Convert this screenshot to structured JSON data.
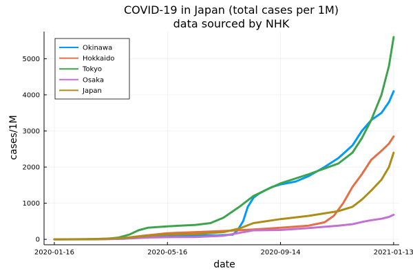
{
  "chart_data": {
    "type": "line",
    "title": "COVID-19 in Japan (total cases per 1M)",
    "subtitle": "data sourced by NHK",
    "xlabel": "date",
    "ylabel": "cases/1M",
    "x_ticks": [
      "2020-01-16",
      "2020-05-16",
      "2020-09-14",
      "2021-01-13"
    ],
    "y_ticks": [
      0,
      1000,
      2000,
      3000,
      4000,
      5000
    ],
    "xlim": [
      "2020-01-05",
      "2021-01-19"
    ],
    "ylim": [
      -150,
      5750
    ],
    "grid": true,
    "legend_position": "top-left",
    "series": [
      {
        "name": "Okinawa",
        "color": "#009AFA",
        "points": [
          [
            "2020-01-16",
            0
          ],
          [
            "2020-03-01",
            1
          ],
          [
            "2020-04-01",
            20
          ],
          [
            "2020-04-20",
            70
          ],
          [
            "2020-05-16",
            100
          ],
          [
            "2020-06-20",
            105
          ],
          [
            "2020-07-10",
            110
          ],
          [
            "2020-07-25",
            130
          ],
          [
            "2020-07-30",
            250
          ],
          [
            "2020-08-05",
            500
          ],
          [
            "2020-08-10",
            900
          ],
          [
            "2020-08-16",
            1150
          ],
          [
            "2020-08-21",
            1250
          ],
          [
            "2020-08-28",
            1350
          ],
          [
            "2020-09-05",
            1450
          ],
          [
            "2020-09-14",
            1520
          ],
          [
            "2020-09-30",
            1600
          ],
          [
            "2020-10-14",
            1750
          ],
          [
            "2020-10-31",
            2000
          ],
          [
            "2020-11-15",
            2250
          ],
          [
            "2020-11-30",
            2600
          ],
          [
            "2020-12-10",
            3000
          ],
          [
            "2020-12-20",
            3300
          ],
          [
            "2020-12-31",
            3500
          ],
          [
            "2021-01-08",
            3800
          ],
          [
            "2021-01-13",
            4100
          ]
        ]
      },
      {
        "name": "Hokkaido",
        "color": "#E26F46",
        "points": [
          [
            "2020-01-16",
            0
          ],
          [
            "2020-02-20",
            5
          ],
          [
            "2020-03-10",
            20
          ],
          [
            "2020-04-01",
            40
          ],
          [
            "2020-04-20",
            100
          ],
          [
            "2020-05-16",
            170
          ],
          [
            "2020-06-15",
            200
          ],
          [
            "2020-07-15",
            230
          ],
          [
            "2020-08-15",
            270
          ],
          [
            "2020-09-14",
            320
          ],
          [
            "2020-10-14",
            380
          ],
          [
            "2020-10-31",
            470
          ],
          [
            "2020-11-10",
            650
          ],
          [
            "2020-11-20",
            1000
          ],
          [
            "2020-11-30",
            1450
          ],
          [
            "2020-12-10",
            1800
          ],
          [
            "2020-12-20",
            2200
          ],
          [
            "2020-12-31",
            2450
          ],
          [
            "2021-01-08",
            2650
          ],
          [
            "2021-01-13",
            2850
          ]
        ]
      },
      {
        "name": "Tokyo",
        "color": "#3DA44D",
        "points": [
          [
            "2020-01-16",
            0
          ],
          [
            "2020-03-10",
            10
          ],
          [
            "2020-03-25",
            50
          ],
          [
            "2020-04-05",
            130
          ],
          [
            "2020-04-15",
            250
          ],
          [
            "2020-04-25",
            320
          ],
          [
            "2020-05-16",
            360
          ],
          [
            "2020-06-15",
            400
          ],
          [
            "2020-07-01",
            450
          ],
          [
            "2020-07-15",
            600
          ],
          [
            "2020-08-01",
            900
          ],
          [
            "2020-08-16",
            1200
          ],
          [
            "2020-09-01",
            1400
          ],
          [
            "2020-09-14",
            1550
          ],
          [
            "2020-10-14",
            1800
          ],
          [
            "2020-11-15",
            2100
          ],
          [
            "2020-11-30",
            2400
          ],
          [
            "2020-12-10",
            2800
          ],
          [
            "2020-12-20",
            3300
          ],
          [
            "2020-12-31",
            4000
          ],
          [
            "2021-01-08",
            4800
          ],
          [
            "2021-01-13",
            5600
          ]
        ]
      },
      {
        "name": "Osaka",
        "color": "#C271D2",
        "points": [
          [
            "2020-01-16",
            0
          ],
          [
            "2020-03-01",
            2
          ],
          [
            "2020-04-01",
            20
          ],
          [
            "2020-04-25",
            50
          ],
          [
            "2020-05-16",
            60
          ],
          [
            "2020-06-15",
            65
          ],
          [
            "2020-07-15",
            100
          ],
          [
            "2020-08-01",
            180
          ],
          [
            "2020-08-16",
            250
          ],
          [
            "2020-09-14",
            260
          ],
          [
            "2020-10-14",
            310
          ],
          [
            "2020-11-15",
            380
          ],
          [
            "2020-11-30",
            420
          ],
          [
            "2020-12-10",
            480
          ],
          [
            "2020-12-20",
            530
          ],
          [
            "2020-12-31",
            570
          ],
          [
            "2021-01-08",
            620
          ],
          [
            "2021-01-13",
            680
          ]
        ]
      },
      {
        "name": "Japan",
        "color": "#AC8D18",
        "points": [
          [
            "2020-01-16",
            0
          ],
          [
            "2020-03-01",
            5
          ],
          [
            "2020-04-01",
            40
          ],
          [
            "2020-04-25",
            100
          ],
          [
            "2020-05-16",
            130
          ],
          [
            "2020-06-15",
            145
          ],
          [
            "2020-07-15",
            200
          ],
          [
            "2020-08-01",
            300
          ],
          [
            "2020-08-16",
            450
          ],
          [
            "2020-09-14",
            560
          ],
          [
            "2020-10-14",
            650
          ],
          [
            "2020-11-15",
            780
          ],
          [
            "2020-11-30",
            900
          ],
          [
            "2020-12-10",
            1100
          ],
          [
            "2020-12-20",
            1350
          ],
          [
            "2020-12-31",
            1650
          ],
          [
            "2021-01-08",
            2000
          ],
          [
            "2021-01-13",
            2400
          ]
        ]
      }
    ]
  }
}
